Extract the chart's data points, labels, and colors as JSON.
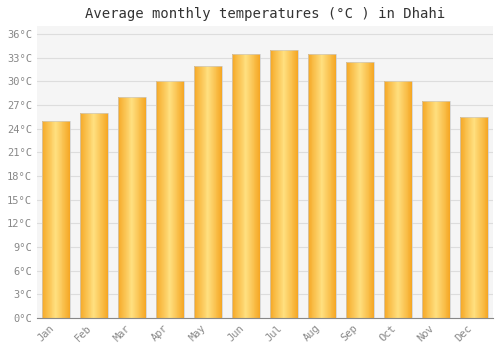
{
  "title": "Average monthly temperatures (°C ) in Dhahi",
  "months": [
    "Jan",
    "Feb",
    "Mar",
    "Apr",
    "May",
    "Jun",
    "Jul",
    "Aug",
    "Sep",
    "Oct",
    "Nov",
    "Dec"
  ],
  "temperatures": [
    25.0,
    26.0,
    28.0,
    30.0,
    32.0,
    33.5,
    34.0,
    33.5,
    32.5,
    30.0,
    27.5,
    25.5
  ],
  "bar_color_center": "#FFD966",
  "bar_color_edge": "#F5A623",
  "background_color": "#FFFFFF",
  "plot_bg_color": "#F5F5F5",
  "grid_color": "#DDDDDD",
  "ylim": [
    0,
    37
  ],
  "yticks": [
    0,
    3,
    6,
    9,
    12,
    15,
    18,
    21,
    24,
    27,
    30,
    33,
    36
  ],
  "ytick_labels": [
    "0°C",
    "3°C",
    "6°C",
    "9°C",
    "12°C",
    "15°C",
    "18°C",
    "21°C",
    "24°C",
    "27°C",
    "30°C",
    "33°C",
    "36°C"
  ],
  "title_fontsize": 10,
  "tick_fontsize": 7.5,
  "title_font": "monospace",
  "tick_font": "monospace",
  "tick_color": "#888888",
  "bar_width": 0.75
}
